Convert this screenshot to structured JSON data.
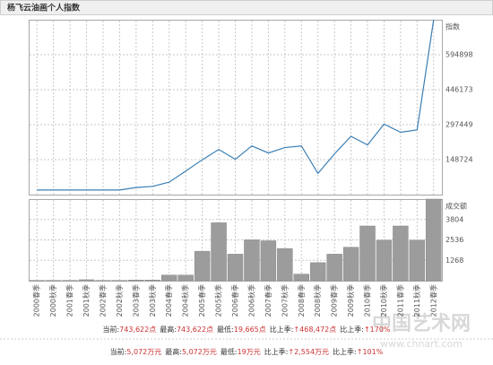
{
  "title": "杨飞云油画个人指数",
  "chart_data": [
    {
      "type": "line",
      "axis_label": "指数",
      "color": "#3a7fb5",
      "values": [
        19665,
        19665,
        19665,
        19665,
        19665,
        19665,
        30000,
        35000,
        53000,
        100000,
        148000,
        192000,
        150000,
        207000,
        177000,
        200000,
        207000,
        90000,
        173000,
        248000,
        211000,
        300000,
        265000,
        275150,
        743622
      ],
      "ylim": [
        0,
        743622
      ],
      "yticks": [
        148724,
        297449,
        446173,
        594898
      ],
      "grid": true
    },
    {
      "type": "bar",
      "axis_label": "成交额",
      "color": "#9c9c9c",
      "categories": [
        "2000春季",
        "2000秋季",
        "2001春季",
        "2001秋季",
        "2002春季",
        "2002秋季",
        "2003春季",
        "2003秋季",
        "2004春季",
        "2004秋季",
        "2005春季",
        "2005秋季",
        "2006春季",
        "2006秋季",
        "2007春季",
        "2007秋季",
        "2008春季",
        "2008秋季",
        "2009春季",
        "2009秋季",
        "2010春季",
        "2010秋季",
        "2011春季",
        "2011秋季",
        "2012春季"
      ],
      "values": [
        19,
        19,
        19,
        60,
        19,
        19,
        40,
        40,
        350,
        350,
        1830,
        3600,
        1650,
        2540,
        2480,
        2000,
        410,
        1120,
        1650,
        2080,
        3400,
        2518,
        3400,
        2518,
        5072
      ],
      "ylim": [
        0,
        5072
      ],
      "yticks": [
        1268,
        2536,
        3804
      ],
      "grid": true
    }
  ],
  "summary": [
    [
      {
        "label": "当前:",
        "value": "743,622点"
      },
      {
        "label": "最高:",
        "value": "743,622点"
      },
      {
        "label": "最低:",
        "value": "19,665点"
      },
      {
        "label": "比上季:",
        "value": "↑468,472点"
      },
      {
        "label": "比上季:",
        "value": "↑170%"
      }
    ],
    [
      {
        "label": "当前:",
        "value": "5,072万元"
      },
      {
        "label": "最高:",
        "value": "5,072万元"
      },
      {
        "label": "最低:",
        "value": "19万元"
      },
      {
        "label": "比上季:",
        "value": "↑2,554万元"
      },
      {
        "label": "比上季:",
        "value": "↑101%"
      }
    ]
  ],
  "watermark": {
    "name": "中国艺术网",
    "url": "www.chnart.com"
  }
}
